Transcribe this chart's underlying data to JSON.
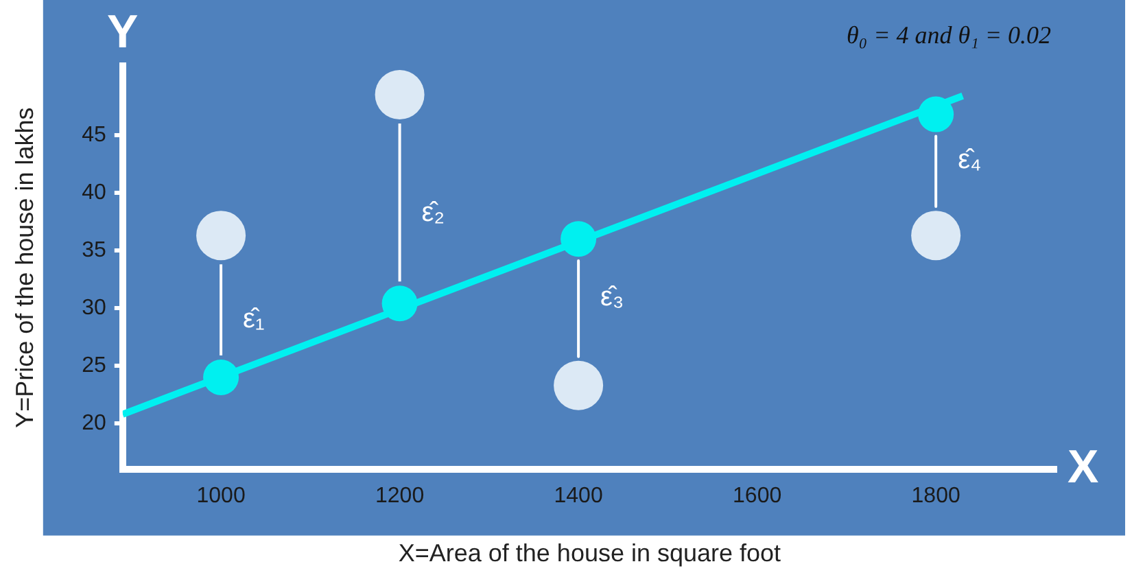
{
  "chart_data": {
    "type": "scatter",
    "xlabel": "X=Area of the house in square foot",
    "ylabel": "Y=Price of the house in lakhs",
    "xlim": [
      890,
      1935
    ],
    "xticks": [
      1000,
      1200,
      1400,
      1600,
      1800
    ],
    "ylim": [
      16,
      51
    ],
    "yticks": [
      20,
      25,
      30,
      35,
      40,
      45
    ],
    "grid": false,
    "series": [
      {
        "type": "line",
        "color": "#ffffff",
        "x": [
          1000,
          1000
        ],
        "values": [
          25.9,
          33.8
        ],
        "marker": "none"
      },
      {
        "type": "line",
        "color": "#ffffff",
        "x": [
          1200,
          1200
        ],
        "values": [
          32.3,
          46
        ],
        "marker": "none"
      },
      {
        "type": "line",
        "color": "#ffffff",
        "x": [
          1400,
          1400
        ],
        "values": [
          34.1,
          25.8
        ],
        "marker": "none"
      },
      {
        "type": "line",
        "color": "#ffffff",
        "x": [
          1800,
          1800
        ],
        "values": [
          44.9,
          38.8
        ],
        "marker": "none"
      },
      {
        "type": "line",
        "color": "#00f0f0",
        "x": [
          890,
          1830
        ],
        "values": [
          20.8,
          48.4
        ],
        "marker": "none"
      },
      {
        "type": "scatter",
        "color": "#dce9f5",
        "x": [
          1000,
          1200,
          1400,
          1800
        ],
        "values": [
          36.3,
          48.5,
          23.3,
          36.3
        ],
        "marker": "circle"
      },
      {
        "type": "scatter",
        "color": "#00f0f0",
        "x": [
          1000,
          1200,
          1400,
          1800
        ],
        "values": [
          24,
          30.4,
          36,
          46.8
        ],
        "marker": "circle"
      }
    ],
    "annotations": [
      "θ₀ = 4 and θ₁ = 0.02",
      "Y",
      "X",
      {
        "text": "ε̂₁",
        "x": 1000,
        "y": 29
      },
      {
        "text": "ε̂₂",
        "x": 1200,
        "y": 38.2
      },
      {
        "text": "ε̂₃",
        "x": 1400,
        "y": 30.9
      },
      {
        "text": "ε̂₄",
        "x": 1800,
        "y": 42.8
      }
    ]
  }
}
